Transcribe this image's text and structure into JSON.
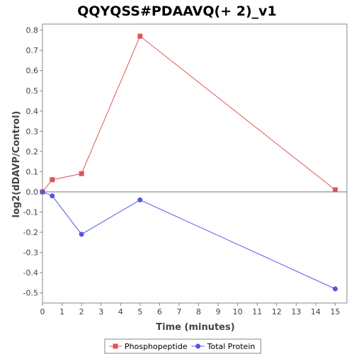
{
  "chart_data": {
    "type": "line",
    "title": "QQYQSS#PDAAVQ(+ 2)_v1",
    "xlabel": "Time (minutes)",
    "ylabel": "log2(dDAVP/Control)",
    "xlim": [
      0,
      15.6
    ],
    "ylim": [
      -0.55,
      0.83
    ],
    "xticks": [
      0,
      1,
      2,
      3,
      4,
      5,
      6,
      7,
      8,
      9,
      10,
      11,
      12,
      13,
      14,
      15
    ],
    "yticks": [
      -0.5,
      -0.4,
      -0.3,
      -0.2,
      -0.1,
      0.0,
      0.1,
      0.2,
      0.3,
      0.4,
      0.5,
      0.6,
      0.7,
      0.8
    ],
    "ytick_labels": [
      "-0.5",
      "-0.4",
      "-0.3",
      "-0.2",
      "-0.1",
      "0.0",
      "0.1",
      "0.2",
      "0.3",
      "0.4",
      "0.5",
      "0.6",
      "0.7",
      "0.8"
    ],
    "grid": false,
    "zero_line": true,
    "legend_position": "bottom",
    "series": [
      {
        "name": "Phosphopeptide",
        "color": "#e05555",
        "marker": "square",
        "x": [
          0,
          0.5,
          2,
          5,
          15
        ],
        "y": [
          0.0,
          0.06,
          0.09,
          0.77,
          0.01
        ]
      },
      {
        "name": "Total Protein",
        "color": "#5555e8",
        "marker": "circle",
        "x": [
          0,
          0.5,
          2,
          5,
          15
        ],
        "y": [
          0.0,
          -0.02,
          -0.21,
          -0.04,
          -0.48
        ]
      }
    ]
  }
}
